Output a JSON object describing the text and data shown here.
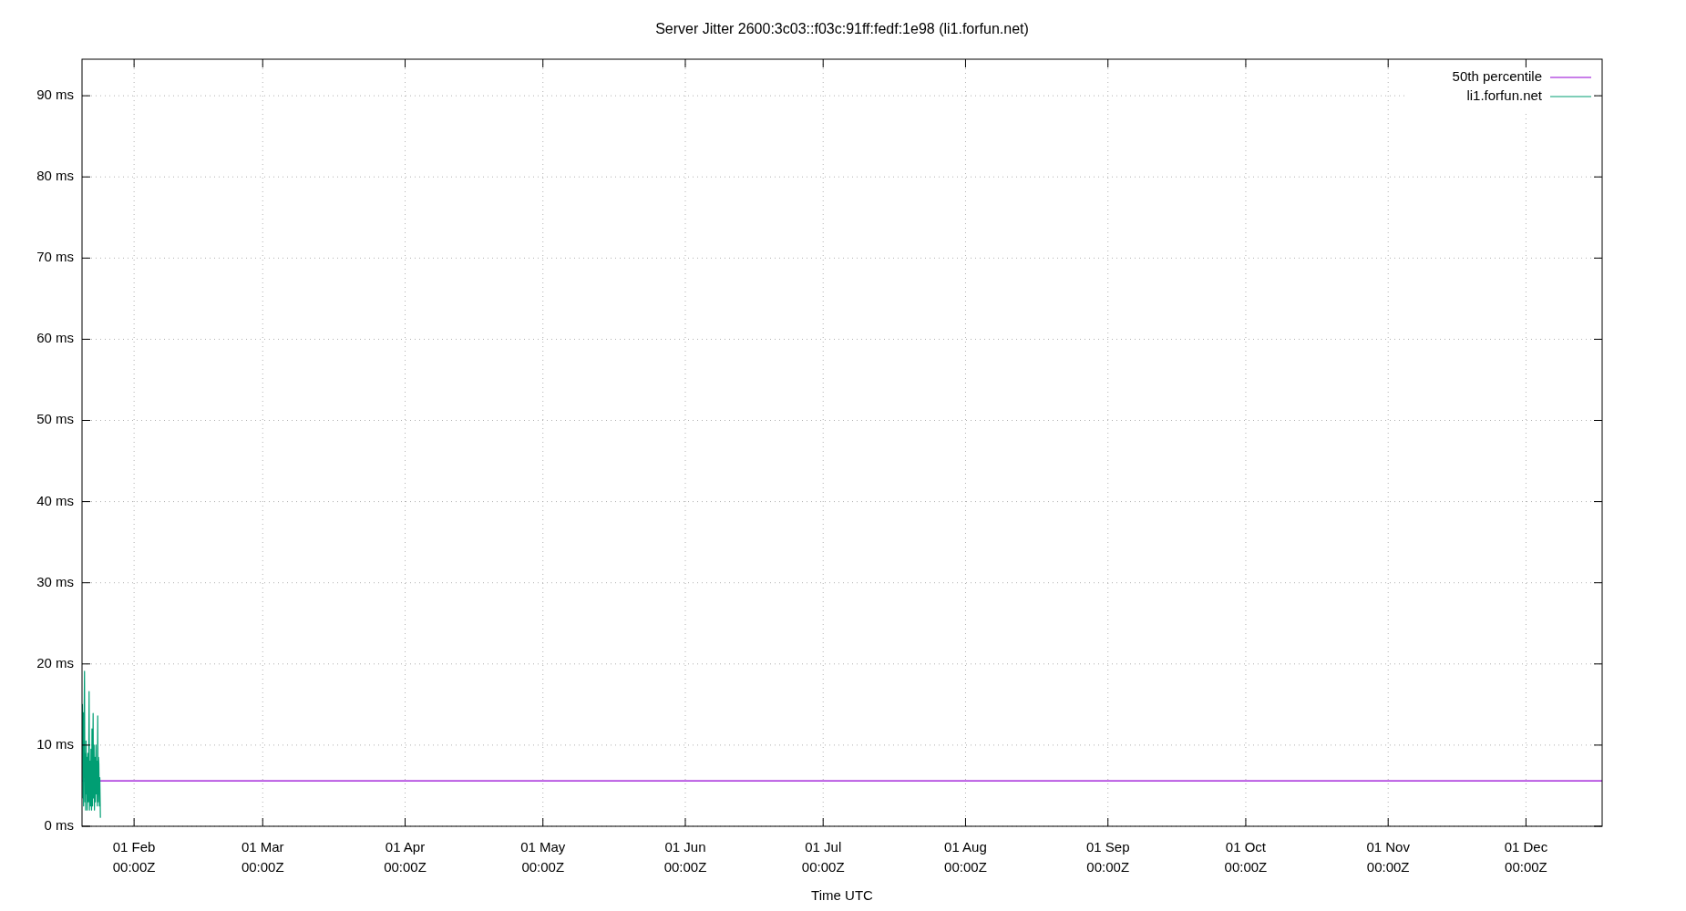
{
  "chart_data": {
    "type": "line",
    "title": "Server Jitter 2600:3c03::f03c:91ff:fedf:1e98 (li1.forfun.net)",
    "xlabel": "Time UTC",
    "xlim": [
      "--01-20T16:00",
      "--12-17T14:00"
    ],
    "xticks": [
      {
        "value": "--02-01",
        "label": "01 Feb\n00:00Z"
      },
      {
        "value": "--03-01",
        "label": "01 Mar\n00:00Z"
      },
      {
        "value": "--04-01",
        "label": "01 Apr\n00:00Z"
      },
      {
        "value": "--05-01",
        "label": "01 May\n00:00Z"
      },
      {
        "value": "--06-01",
        "label": "01 Jun\n00:00Z"
      },
      {
        "value": "--07-01",
        "label": "01 Jul\n00:00Z"
      },
      {
        "value": "--08-01",
        "label": "01 Aug\n00:00Z"
      },
      {
        "value": "--09-01",
        "label": "01 Sep\n00:00Z"
      },
      {
        "value": "--10-01",
        "label": "01 Oct\n00:00Z"
      },
      {
        "value": "--11-01",
        "label": "01 Nov\n00:00Z"
      },
      {
        "value": "--12-01",
        "label": "01 Dec\n00:00Z"
      }
    ],
    "ylim": [
      0,
      94.5
    ],
    "yticks": [
      {
        "value": 0,
        "label": "0 ms"
      },
      {
        "value": 10,
        "label": "10 ms"
      },
      {
        "value": 20,
        "label": "20 ms"
      },
      {
        "value": 30,
        "label": "30 ms"
      },
      {
        "value": 40,
        "label": "40 ms"
      },
      {
        "value": 50,
        "label": "50 ms"
      },
      {
        "value": 60,
        "label": "60 ms"
      },
      {
        "value": 70,
        "label": "70 ms"
      },
      {
        "value": 80,
        "label": "80 ms"
      },
      {
        "value": 90,
        "label": "90 ms"
      }
    ],
    "grid": true,
    "legend": "top right",
    "series": [
      {
        "name": "50th percentile",
        "color": "#9400d3",
        "x": [
          "--01-20T16:00",
          "--12-17T14:00"
        ],
        "values": [
          5.6,
          5.6
        ]
      },
      {
        "name": "li1.forfun.net",
        "color": "#009e73",
        "x": [
          "--01-20T18:00",
          "--01-20T20:00",
          "--01-20T22:00",
          "--01-21T00:00",
          "--01-21T02:00",
          "--01-21T05:00",
          "--01-21T07:00",
          "--01-21T09:00",
          "--01-21T11:00",
          "--01-21T13:00",
          "--01-21T15:00",
          "--01-21T17:00",
          "--01-21T19:00",
          "--01-21T22:00",
          "--01-22T01:00",
          "--01-22T03:00",
          "--01-22T05:00",
          "--01-22T07:00",
          "--01-22T10:00",
          "--01-22T12:00",
          "--01-22T15:00",
          "--01-22T18:00",
          "--01-22T20:00",
          "--01-22T23:00",
          "--01-23T02:00",
          "--01-23T04:00",
          "--01-23T07:00",
          "--01-23T09:00",
          "--01-23T12:00",
          "--01-23T14:00",
          "--01-23T17:00",
          "--01-23T19:00",
          "--01-23T22:00",
          "--01-24T00:00",
          "--01-24T02:00",
          "--01-24T04:00",
          "--01-24T06:00",
          "--01-24T08:00",
          "--01-24T11:00",
          "--01-24T13:00",
          "--01-24T16:00"
        ],
        "values": [
          15.0,
          3.5,
          14.0,
          2.5,
          11.0,
          19.1,
          3.0,
          9.0,
          2.0,
          10.5,
          4.0,
          8.5,
          2.0,
          9.0,
          3.0,
          7.5,
          16.6,
          2.0,
          8.0,
          2.5,
          9.5,
          2.0,
          12.0,
          2.5,
          13.9,
          3.5,
          10.0,
          2.0,
          8.5,
          3.0,
          10.0,
          4.0,
          8.0,
          2.5,
          13.6,
          3.0,
          8.5,
          7.7,
          2.5,
          6.0,
          1.1
        ]
      }
    ]
  }
}
